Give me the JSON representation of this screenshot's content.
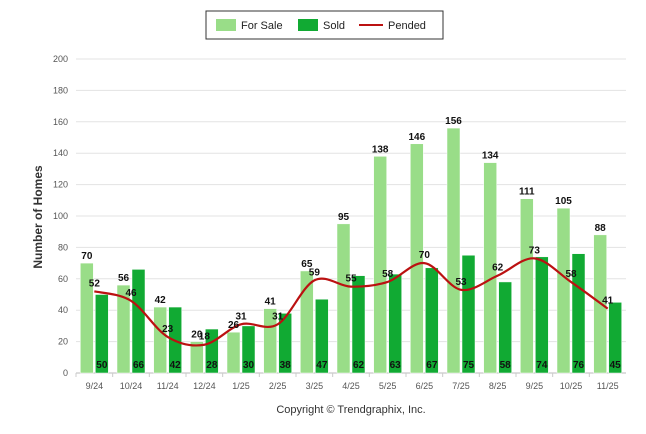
{
  "chart_data": {
    "type": "bar",
    "title": "",
    "xlabel": "",
    "ylabel": "Number of Homes",
    "ylim": [
      0,
      200
    ],
    "yticks": [
      0,
      20,
      40,
      60,
      80,
      100,
      120,
      140,
      160,
      180,
      200
    ],
    "grid": true,
    "legend_position": "top-center",
    "categories": [
      "9/24",
      "10/24",
      "11/24",
      "12/24",
      "1/25",
      "2/25",
      "3/25",
      "4/25",
      "5/25",
      "6/25",
      "7/25",
      "8/25",
      "9/25",
      "10/25",
      "11/25"
    ],
    "series": [
      {
        "name": "For Sale",
        "kind": "bar",
        "color": "#99dd88",
        "values": [
          70,
          56,
          42,
          20,
          26,
          41,
          65,
          95,
          138,
          146,
          156,
          134,
          111,
          105,
          88
        ]
      },
      {
        "name": "Sold",
        "kind": "bar",
        "color": "#11aa33",
        "values": [
          50,
          66,
          42,
          28,
          30,
          38,
          47,
          62,
          63,
          67,
          75,
          58,
          74,
          76,
          45
        ]
      },
      {
        "name": "Pended",
        "kind": "line",
        "color": "#bb1111",
        "values": [
          52,
          46,
          23,
          18,
          31,
          31,
          59,
          55,
          58,
          70,
          53,
          62,
          73,
          58,
          41
        ]
      }
    ],
    "footer": "Copyright © Trendgraphix, Inc."
  }
}
